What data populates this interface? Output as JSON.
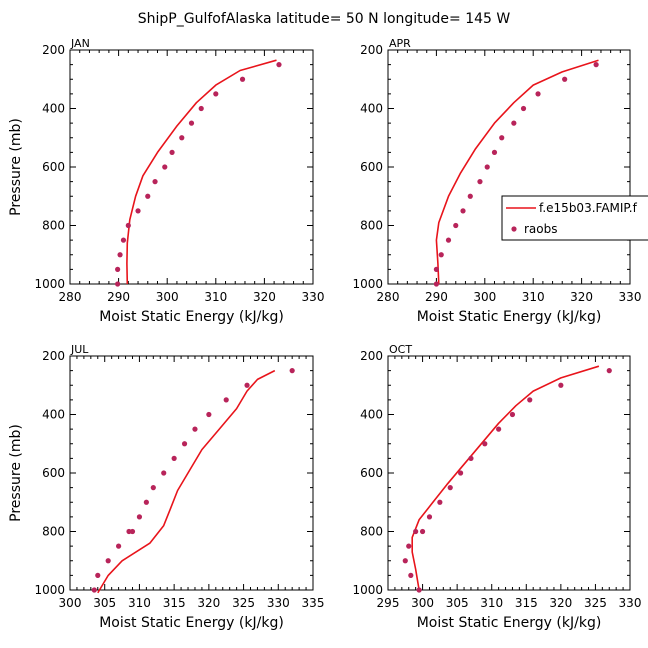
{
  "title": "ShipP_GulfofAlaska  latitude= 50 N longitude= 145 W",
  "colors": {
    "model_line": "#e8141b",
    "obs_point": "#b8245a",
    "axis": "#000000"
  },
  "legend": {
    "placement": "right of APR panel",
    "entries": [
      {
        "label": "f.e15b03.FAMIP.f",
        "kind": "line"
      },
      {
        "label": "raobs",
        "kind": "point"
      }
    ]
  },
  "chart_data": [
    {
      "type": "line",
      "name": "JAN",
      "title": "JAN",
      "xlabel": "Moist Static Energy (kJ/kg)",
      "ylabel": "Pressure (mb)",
      "xlim": [
        280,
        330
      ],
      "ylim": [
        200,
        1000
      ],
      "y_inverted": true,
      "xticks": [
        280,
        290,
        300,
        310,
        320,
        330
      ],
      "yticks": [
        200,
        400,
        600,
        800,
        1000
      ],
      "series": [
        {
          "name": "f.e15b03.FAMIP.f",
          "style": "line",
          "x": [
            322.5,
            315,
            310,
            306,
            302,
            298,
            295,
            293.5,
            292.3,
            291.8,
            291.7,
            291.8
          ],
          "y": [
            235,
            270,
            320,
            380,
            460,
            550,
            630,
            700,
            780,
            860,
            930,
            1000
          ]
        },
        {
          "name": "raobs",
          "style": "points",
          "x": [
            323,
            315.5,
            310,
            307,
            305,
            303,
            301,
            299.5,
            297.5,
            296,
            294,
            292,
            291,
            290.3,
            289.8,
            289.8
          ],
          "y": [
            250,
            300,
            350,
            400,
            450,
            500,
            550,
            600,
            650,
            700,
            750,
            800,
            850,
            900,
            950,
            1000
          ]
        }
      ]
    },
    {
      "type": "line",
      "name": "APR",
      "title": "APR",
      "xlabel": "Moist Static Energy (kJ/kg)",
      "ylabel": "",
      "xlim": [
        280,
        330
      ],
      "ylim": [
        200,
        1000
      ],
      "y_inverted": true,
      "xticks": [
        280,
        290,
        300,
        310,
        320,
        330
      ],
      "yticks": [
        200,
        400,
        600,
        800,
        1000
      ],
      "series": [
        {
          "name": "f.e15b03.FAMIP.f",
          "style": "line",
          "x": [
            323.5,
            316,
            310,
            306,
            302,
            298,
            295,
            292.5,
            290.5,
            290,
            290.3,
            290.5
          ],
          "y": [
            235,
            275,
            320,
            380,
            450,
            540,
            620,
            700,
            790,
            850,
            930,
            1000
          ]
        },
        {
          "name": "raobs",
          "style": "points",
          "x": [
            323,
            316.5,
            311,
            308,
            306,
            303.5,
            302,
            300.5,
            299,
            297,
            295.5,
            294,
            292.5,
            291,
            290,
            290
          ],
          "y": [
            250,
            300,
            350,
            400,
            450,
            500,
            550,
            600,
            650,
            700,
            750,
            800,
            850,
            900,
            950,
            1000
          ]
        }
      ]
    },
    {
      "type": "line",
      "name": "JUL",
      "title": "JUL",
      "xlabel": "Moist Static Energy (kJ/kg)",
      "ylabel": "Pressure (mb)",
      "xlim": [
        300,
        335
      ],
      "ylim": [
        200,
        1000
      ],
      "y_inverted": true,
      "xticks": [
        300,
        305,
        310,
        315,
        320,
        325,
        330,
        335
      ],
      "yticks": [
        200,
        400,
        600,
        800,
        1000
      ],
      "series": [
        {
          "name": "f.e15b03.FAMIP.f",
          "style": "line",
          "x": [
            329.5,
            327,
            325.5,
            324,
            321.5,
            319,
            317,
            315.5,
            314.5,
            313.5,
            311.5,
            307.5,
            305.5,
            304
          ],
          "y": [
            250,
            280,
            320,
            380,
            450,
            520,
            600,
            660,
            720,
            780,
            840,
            900,
            950,
            1010
          ]
        },
        {
          "name": "raobs",
          "style": "points",
          "x": [
            332,
            325.5,
            322.5,
            320,
            318,
            316.5,
            315,
            313.5,
            312,
            311,
            310,
            309,
            308.5,
            307,
            305.5,
            304,
            303.5
          ],
          "y": [
            250,
            300,
            350,
            400,
            450,
            500,
            550,
            600,
            650,
            700,
            750,
            800,
            800,
            850,
            900,
            950,
            1000
          ]
        }
      ]
    },
    {
      "type": "line",
      "name": "OCT",
      "title": "OCT",
      "xlabel": "Moist Static Energy (kJ/kg)",
      "ylabel": "",
      "xlim": [
        295,
        330
      ],
      "ylim": [
        200,
        1000
      ],
      "y_inverted": true,
      "xticks": [
        295,
        300,
        305,
        310,
        315,
        320,
        325,
        330
      ],
      "yticks": [
        200,
        400,
        600,
        800,
        1000
      ],
      "series": [
        {
          "name": "f.e15b03.FAMIP.f",
          "style": "line",
          "x": [
            325.5,
            320,
            316,
            313.5,
            311,
            308.5,
            306,
            303.5,
            301.5,
            299.5,
            298.5,
            298.5,
            299,
            299.5
          ],
          "y": [
            235,
            275,
            320,
            370,
            430,
            500,
            570,
            640,
            700,
            760,
            820,
            870,
            930,
            1000
          ]
        },
        {
          "name": "raobs",
          "style": "points",
          "x": [
            327,
            320,
            315.5,
            313,
            311,
            309,
            307,
            305.5,
            304,
            302.5,
            301,
            300,
            299,
            298,
            297.5,
            298.3,
            299.5
          ],
          "y": [
            250,
            300,
            350,
            400,
            450,
            500,
            550,
            600,
            650,
            700,
            750,
            800,
            800,
            850,
            900,
            950,
            1000
          ]
        }
      ]
    }
  ]
}
